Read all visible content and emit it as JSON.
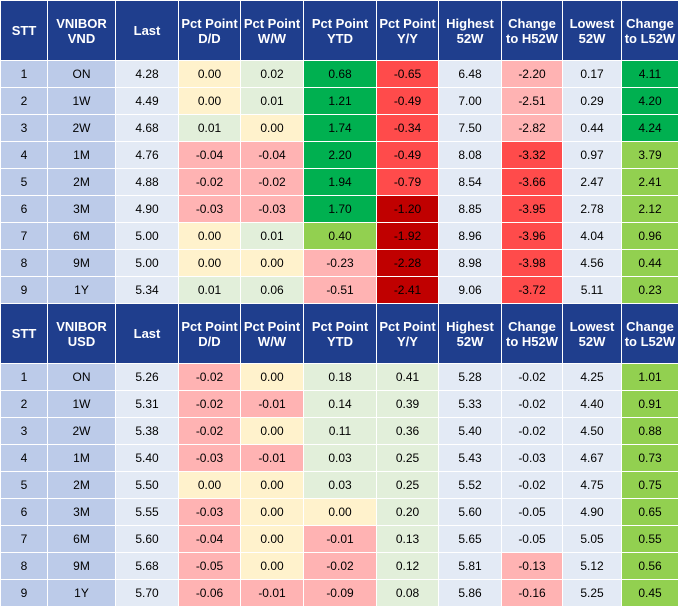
{
  "colors": {
    "header_bg": "#1f3e8d",
    "label_bg": "#bccbe9",
    "value_bg": "#e3eaf5",
    "neutral_yellow": "#fff2cc",
    "light_green": "#e2efda",
    "green": "#00b050",
    "medium_green": "#92d050",
    "light_red": "#ffb3b3",
    "red": "#ff4b4b",
    "dark_red": "#c00000"
  },
  "tables": [
    {
      "headers": [
        "STT",
        "VNIBOR VND",
        "Last",
        "Pct Point D/D",
        "Pct Point W/W",
        "Pct Point YTD",
        "Pct Point Y/Y",
        "Highest 52W",
        "Change to H52W",
        "Lowest 52W",
        "Change to L52W"
      ],
      "rows": [
        {
          "stt": "1",
          "term": "ON",
          "last": "4.28",
          "dd": "0.00",
          "ww": "0.02",
          "ytd": "0.68",
          "yy": "-0.65",
          "h52": "6.48",
          "ch52": "-2.20",
          "l52": "0.17",
          "cl52": "4.11"
        },
        {
          "stt": "2",
          "term": "1W",
          "last": "4.49",
          "dd": "0.00",
          "ww": "0.01",
          "ytd": "1.21",
          "yy": "-0.49",
          "h52": "7.00",
          "ch52": "-2.51",
          "l52": "0.29",
          "cl52": "4.20"
        },
        {
          "stt": "3",
          "term": "2W",
          "last": "4.68",
          "dd": "0.01",
          "ww": "0.00",
          "ytd": "1.74",
          "yy": "-0.34",
          "h52": "7.50",
          "ch52": "-2.82",
          "l52": "0.44",
          "cl52": "4.24"
        },
        {
          "stt": "4",
          "term": "1M",
          "last": "4.76",
          "dd": "-0.04",
          "ww": "-0.04",
          "ytd": "2.20",
          "yy": "-0.49",
          "h52": "8.08",
          "ch52": "-3.32",
          "l52": "0.97",
          "cl52": "3.79"
        },
        {
          "stt": "5",
          "term": "2M",
          "last": "4.88",
          "dd": "-0.02",
          "ww": "-0.02",
          "ytd": "1.94",
          "yy": "-0.79",
          "h52": "8.54",
          "ch52": "-3.66",
          "l52": "2.47",
          "cl52": "2.41"
        },
        {
          "stt": "6",
          "term": "3M",
          "last": "4.90",
          "dd": "-0.03",
          "ww": "-0.03",
          "ytd": "1.70",
          "yy": "-1.20",
          "h52": "8.85",
          "ch52": "-3.95",
          "l52": "2.78",
          "cl52": "2.12"
        },
        {
          "stt": "7",
          "term": "6M",
          "last": "5.00",
          "dd": "0.00",
          "ww": "0.01",
          "ytd": "0.40",
          "yy": "-1.92",
          "h52": "8.96",
          "ch52": "-3.96",
          "l52": "4.04",
          "cl52": "0.96"
        },
        {
          "stt": "8",
          "term": "9M",
          "last": "5.00",
          "dd": "0.00",
          "ww": "0.00",
          "ytd": "-0.23",
          "yy": "-2.28",
          "h52": "8.98",
          "ch52": "-3.98",
          "l52": "4.56",
          "cl52": "0.44"
        },
        {
          "stt": "9",
          "term": "1Y",
          "last": "5.34",
          "dd": "0.01",
          "ww": "0.06",
          "ytd": "-0.51",
          "yy": "-2.41",
          "h52": "9.06",
          "ch52": "-3.72",
          "l52": "5.11",
          "cl52": "0.23"
        }
      ]
    },
    {
      "headers": [
        "STT",
        "VNIBOR USD",
        "Last",
        "Pct Point D/D",
        "Pct Point W/W",
        "Pct Point YTD",
        "Pct Point Y/Y",
        "Highest 52W",
        "Change to H52W",
        "Lowest 52W",
        "Change to L52W"
      ],
      "rows": [
        {
          "stt": "1",
          "term": "ON",
          "last": "5.26",
          "dd": "-0.02",
          "ww": "0.00",
          "ytd": "0.18",
          "yy": "0.41",
          "h52": "5.28",
          "ch52": "-0.02",
          "l52": "4.25",
          "cl52": "1.01"
        },
        {
          "stt": "2",
          "term": "1W",
          "last": "5.31",
          "dd": "-0.02",
          "ww": "-0.01",
          "ytd": "0.14",
          "yy": "0.39",
          "h52": "5.33",
          "ch52": "-0.02",
          "l52": "4.40",
          "cl52": "0.91"
        },
        {
          "stt": "3",
          "term": "2W",
          "last": "5.38",
          "dd": "-0.02",
          "ww": "0.00",
          "ytd": "0.11",
          "yy": "0.36",
          "h52": "5.40",
          "ch52": "-0.02",
          "l52": "4.50",
          "cl52": "0.88"
        },
        {
          "stt": "4",
          "term": "1M",
          "last": "5.40",
          "dd": "-0.03",
          "ww": "-0.01",
          "ytd": "0.03",
          "yy": "0.25",
          "h52": "5.43",
          "ch52": "-0.03",
          "l52": "4.67",
          "cl52": "0.73"
        },
        {
          "stt": "5",
          "term": "2M",
          "last": "5.50",
          "dd": "0.00",
          "ww": "0.00",
          "ytd": "0.03",
          "yy": "0.25",
          "h52": "5.52",
          "ch52": "-0.02",
          "l52": "4.75",
          "cl52": "0.75"
        },
        {
          "stt": "6",
          "term": "3M",
          "last": "5.55",
          "dd": "-0.03",
          "ww": "0.00",
          "ytd": "0.00",
          "yy": "0.20",
          "h52": "5.60",
          "ch52": "-0.05",
          "l52": "4.90",
          "cl52": "0.65"
        },
        {
          "stt": "7",
          "term": "6M",
          "last": "5.60",
          "dd": "-0.04",
          "ww": "0.00",
          "ytd": "-0.01",
          "yy": "0.13",
          "h52": "5.65",
          "ch52": "-0.05",
          "l52": "5.05",
          "cl52": "0.55"
        },
        {
          "stt": "8",
          "term": "9M",
          "last": "5.68",
          "dd": "-0.05",
          "ww": "0.00",
          "ytd": "-0.02",
          "yy": "0.12",
          "h52": "5.81",
          "ch52": "-0.13",
          "l52": "5.12",
          "cl52": "0.56"
        },
        {
          "stt": "9",
          "term": "1Y",
          "last": "5.70",
          "dd": "-0.06",
          "ww": "-0.01",
          "ytd": "-0.09",
          "yy": "0.08",
          "h52": "5.86",
          "ch52": "-0.16",
          "l52": "5.25",
          "cl52": "0.45"
        }
      ]
    }
  ]
}
